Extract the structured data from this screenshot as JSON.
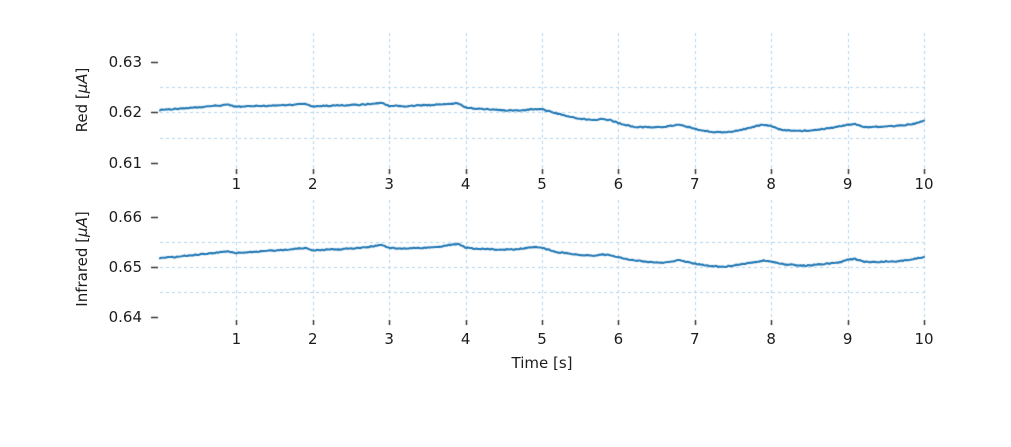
{
  "figure": {
    "xlabel": "Time [s]",
    "background_color": "#ffffff",
    "text_color": "#1c1c1c",
    "line_color": "#1f77b4",
    "grid_color": "#b3d7f0"
  },
  "chart_data": [
    {
      "type": "line",
      "title": "",
      "ylabel": "Red [μA]",
      "ylabel_parts": [
        "Red [",
        "μA",
        "]"
      ],
      "xlabel": "",
      "xlim": [
        0,
        10
      ],
      "ylim": [
        0.6091,
        0.6356
      ],
      "x_ticks": [
        1,
        2,
        3,
        4,
        5,
        6,
        7,
        8,
        9,
        10
      ],
      "x_tick_labels": [
        "1",
        "2",
        "3",
        "4",
        "5",
        "6",
        "7",
        "8",
        "9",
        "10"
      ],
      "y_ticks": [
        0.61,
        0.62,
        0.63
      ],
      "y_tick_labels": [
        "0.61",
        "0.62",
        "0.63"
      ],
      "grid_y": [
        0.615,
        0.62,
        0.625
      ],
      "grid_style": "dashed",
      "legend": "none",
      "noise_band": 0.0001,
      "series": [
        {
          "name": "Red",
          "x_start": 0,
          "x_step": 0.1,
          "values": [
            0.6205,
            0.6206,
            0.6207,
            0.6208,
            0.6209,
            0.621,
            0.6211,
            0.6213,
            0.6214,
            0.6215,
            0.6211,
            0.6212,
            0.6212,
            0.6213,
            0.6213,
            0.6214,
            0.6214,
            0.6215,
            0.6216,
            0.6217,
            0.6212,
            0.6213,
            0.6213,
            0.6214,
            0.6214,
            0.6215,
            0.6215,
            0.6216,
            0.6218,
            0.6219,
            0.6213,
            0.6213,
            0.6212,
            0.6213,
            0.6214,
            0.6214,
            0.6215,
            0.6216,
            0.6217,
            0.6218,
            0.621,
            0.6208,
            0.6207,
            0.6206,
            0.6205,
            0.6204,
            0.6204,
            0.6204,
            0.6205,
            0.6207,
            0.6206,
            0.6202,
            0.6198,
            0.6194,
            0.6191,
            0.6188,
            0.6186,
            0.6186,
            0.6187,
            0.6185,
            0.6179,
            0.6175,
            0.6172,
            0.6171,
            0.6171,
            0.6171,
            0.6172,
            0.6174,
            0.6176,
            0.6172,
            0.6168,
            0.6165,
            0.6162,
            0.6161,
            0.6161,
            0.6163,
            0.6166,
            0.6169,
            0.6173,
            0.6176,
            0.6173,
            0.6167,
            0.6165,
            0.6164,
            0.6164,
            0.6165,
            0.6166,
            0.6168,
            0.617,
            0.6173,
            0.6176,
            0.6177,
            0.6171,
            0.6171,
            0.6172,
            0.6172,
            0.6173,
            0.6174,
            0.6176,
            0.6179,
            0.6183
          ]
        }
      ]
    },
    {
      "type": "line",
      "title": "",
      "ylabel": "Infrared [μA]",
      "ylabel_parts": [
        "Infrared [",
        "μA",
        "]"
      ],
      "xlabel": "Time [s]",
      "xlim": [
        0,
        10
      ],
      "ylim": [
        0.6396,
        0.6634
      ],
      "x_ticks": [
        1,
        2,
        3,
        4,
        5,
        6,
        7,
        8,
        9,
        10
      ],
      "x_tick_labels": [
        "1",
        "2",
        "3",
        "4",
        "5",
        "6",
        "7",
        "8",
        "9",
        "10"
      ],
      "y_ticks": [
        0.64,
        0.65,
        0.66
      ],
      "y_tick_labels": [
        "0.64",
        "0.65",
        "0.66"
      ],
      "grid_y": [
        0.645,
        0.65,
        0.655
      ],
      "grid_style": "dashed",
      "legend": "none",
      "noise_band": 0.0001,
      "series": [
        {
          "name": "Infrared",
          "x_start": 0,
          "x_step": 0.1,
          "values": [
            0.6518,
            0.6519,
            0.652,
            0.6522,
            0.6523,
            0.6525,
            0.6526,
            0.6528,
            0.653,
            0.6531,
            0.6528,
            0.6529,
            0.653,
            0.6531,
            0.6532,
            0.6533,
            0.6534,
            0.6535,
            0.6537,
            0.6538,
            0.6534,
            0.6534,
            0.6535,
            0.6535,
            0.6536,
            0.6537,
            0.6538,
            0.6539,
            0.6542,
            0.6544,
            0.6538,
            0.6537,
            0.6537,
            0.6538,
            0.6538,
            0.6539,
            0.654,
            0.6542,
            0.6544,
            0.6546,
            0.6539,
            0.6537,
            0.6536,
            0.6536,
            0.6535,
            0.6535,
            0.6535,
            0.6536,
            0.6538,
            0.654,
            0.6538,
            0.6534,
            0.653,
            0.6528,
            0.6526,
            0.6524,
            0.6523,
            0.6523,
            0.6525,
            0.6523,
            0.6519,
            0.6516,
            0.6514,
            0.6512,
            0.651,
            0.6509,
            0.6509,
            0.6511,
            0.6514,
            0.651,
            0.6507,
            0.6504,
            0.6502,
            0.6501,
            0.6501,
            0.6503,
            0.6505,
            0.6508,
            0.651,
            0.6513,
            0.6511,
            0.6507,
            0.6505,
            0.6504,
            0.6503,
            0.6503,
            0.6505,
            0.6506,
            0.6508,
            0.651,
            0.6514,
            0.6516,
            0.6511,
            0.651,
            0.651,
            0.6511,
            0.6511,
            0.6512,
            0.6514,
            0.6517,
            0.652
          ]
        }
      ]
    }
  ]
}
